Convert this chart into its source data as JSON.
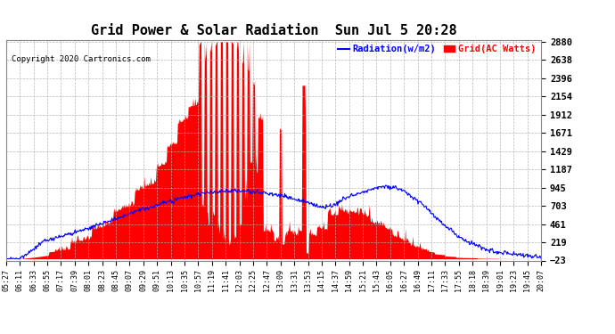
{
  "title": "Grid Power & Solar Radiation  Sun Jul 5 20:28",
  "copyright": "Copyright 2020 Cartronics.com",
  "legend_radiation": "Radiation(w/m2)",
  "legend_grid": "Grid(AC Watts)",
  "ylabel_right_ticks": [
    2880.2,
    2638.3,
    2396.4,
    2154.4,
    1912.5,
    1670.6,
    1428.6,
    1186.7,
    944.7,
    702.8,
    460.9,
    218.9,
    -23.0
  ],
  "ymin": -23.0,
  "ymax": 2880.2,
  "background_color": "#ffffff",
  "plot_bg_color": "#ffffff",
  "grid_color": "#b0b0b0",
  "radiation_fill_color": "#ff0000",
  "radiation_line_color": "#0000ff",
  "x_labels": [
    "05:27",
    "06:11",
    "06:33",
    "06:55",
    "07:17",
    "07:39",
    "08:01",
    "08:23",
    "08:45",
    "09:07",
    "09:29",
    "09:51",
    "10:13",
    "10:35",
    "10:57",
    "11:19",
    "11:41",
    "12:03",
    "12:25",
    "12:47",
    "13:09",
    "13:31",
    "13:53",
    "14:15",
    "14:37",
    "14:59",
    "15:21",
    "15:43",
    "16:05",
    "16:27",
    "16:49",
    "17:11",
    "17:33",
    "17:55",
    "18:18",
    "18:39",
    "19:01",
    "19:23",
    "19:45",
    "20:07"
  ],
  "figsize": [
    6.9,
    3.75
  ],
  "dpi": 100
}
